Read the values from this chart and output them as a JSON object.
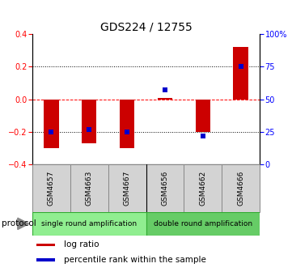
{
  "title": "GDS224 / 12755",
  "samples": [
    "GSM4657",
    "GSM4663",
    "GSM4667",
    "GSM4656",
    "GSM4662",
    "GSM4666"
  ],
  "log_ratios": [
    -0.3,
    -0.27,
    -0.3,
    0.01,
    -0.2,
    0.32
  ],
  "percentile_ranks": [
    25,
    27,
    25,
    57,
    22,
    75
  ],
  "bar_color": "#cc0000",
  "dot_color": "#0000cc",
  "ylim_left": [
    -0.4,
    0.4
  ],
  "ylim_right": [
    0,
    100
  ],
  "yticks_left": [
    -0.4,
    -0.2,
    0.0,
    0.2,
    0.4
  ],
  "yticks_right": [
    0,
    25,
    50,
    75,
    100
  ],
  "ytick_labels_right": [
    "0",
    "25",
    "50",
    "75",
    "100%"
  ],
  "hlines": [
    0.2,
    0.0,
    -0.2
  ],
  "hline_styles": [
    "dotted",
    "dashed",
    "dotted"
  ],
  "hline_colors": [
    "black",
    "red",
    "black"
  ],
  "groups": [
    {
      "label": "single round amplification",
      "color": "#90ee90"
    },
    {
      "label": "double round amplification",
      "color": "#66cc66"
    }
  ],
  "protocol_label": "protocol",
  "legend_items": [
    {
      "color": "#cc0000",
      "label": "log ratio"
    },
    {
      "color": "#0000cc",
      "label": "percentile rank within the sample"
    }
  ],
  "figsize": [
    3.61,
    3.36
  ],
  "dpi": 100,
  "bar_width": 0.4,
  "dot_size": 25,
  "title_fontsize": 10,
  "tick_fontsize": 7,
  "label_fontsize": 7.5,
  "group_label_fontsize": 6.5,
  "sample_label_fontsize": 6.5
}
